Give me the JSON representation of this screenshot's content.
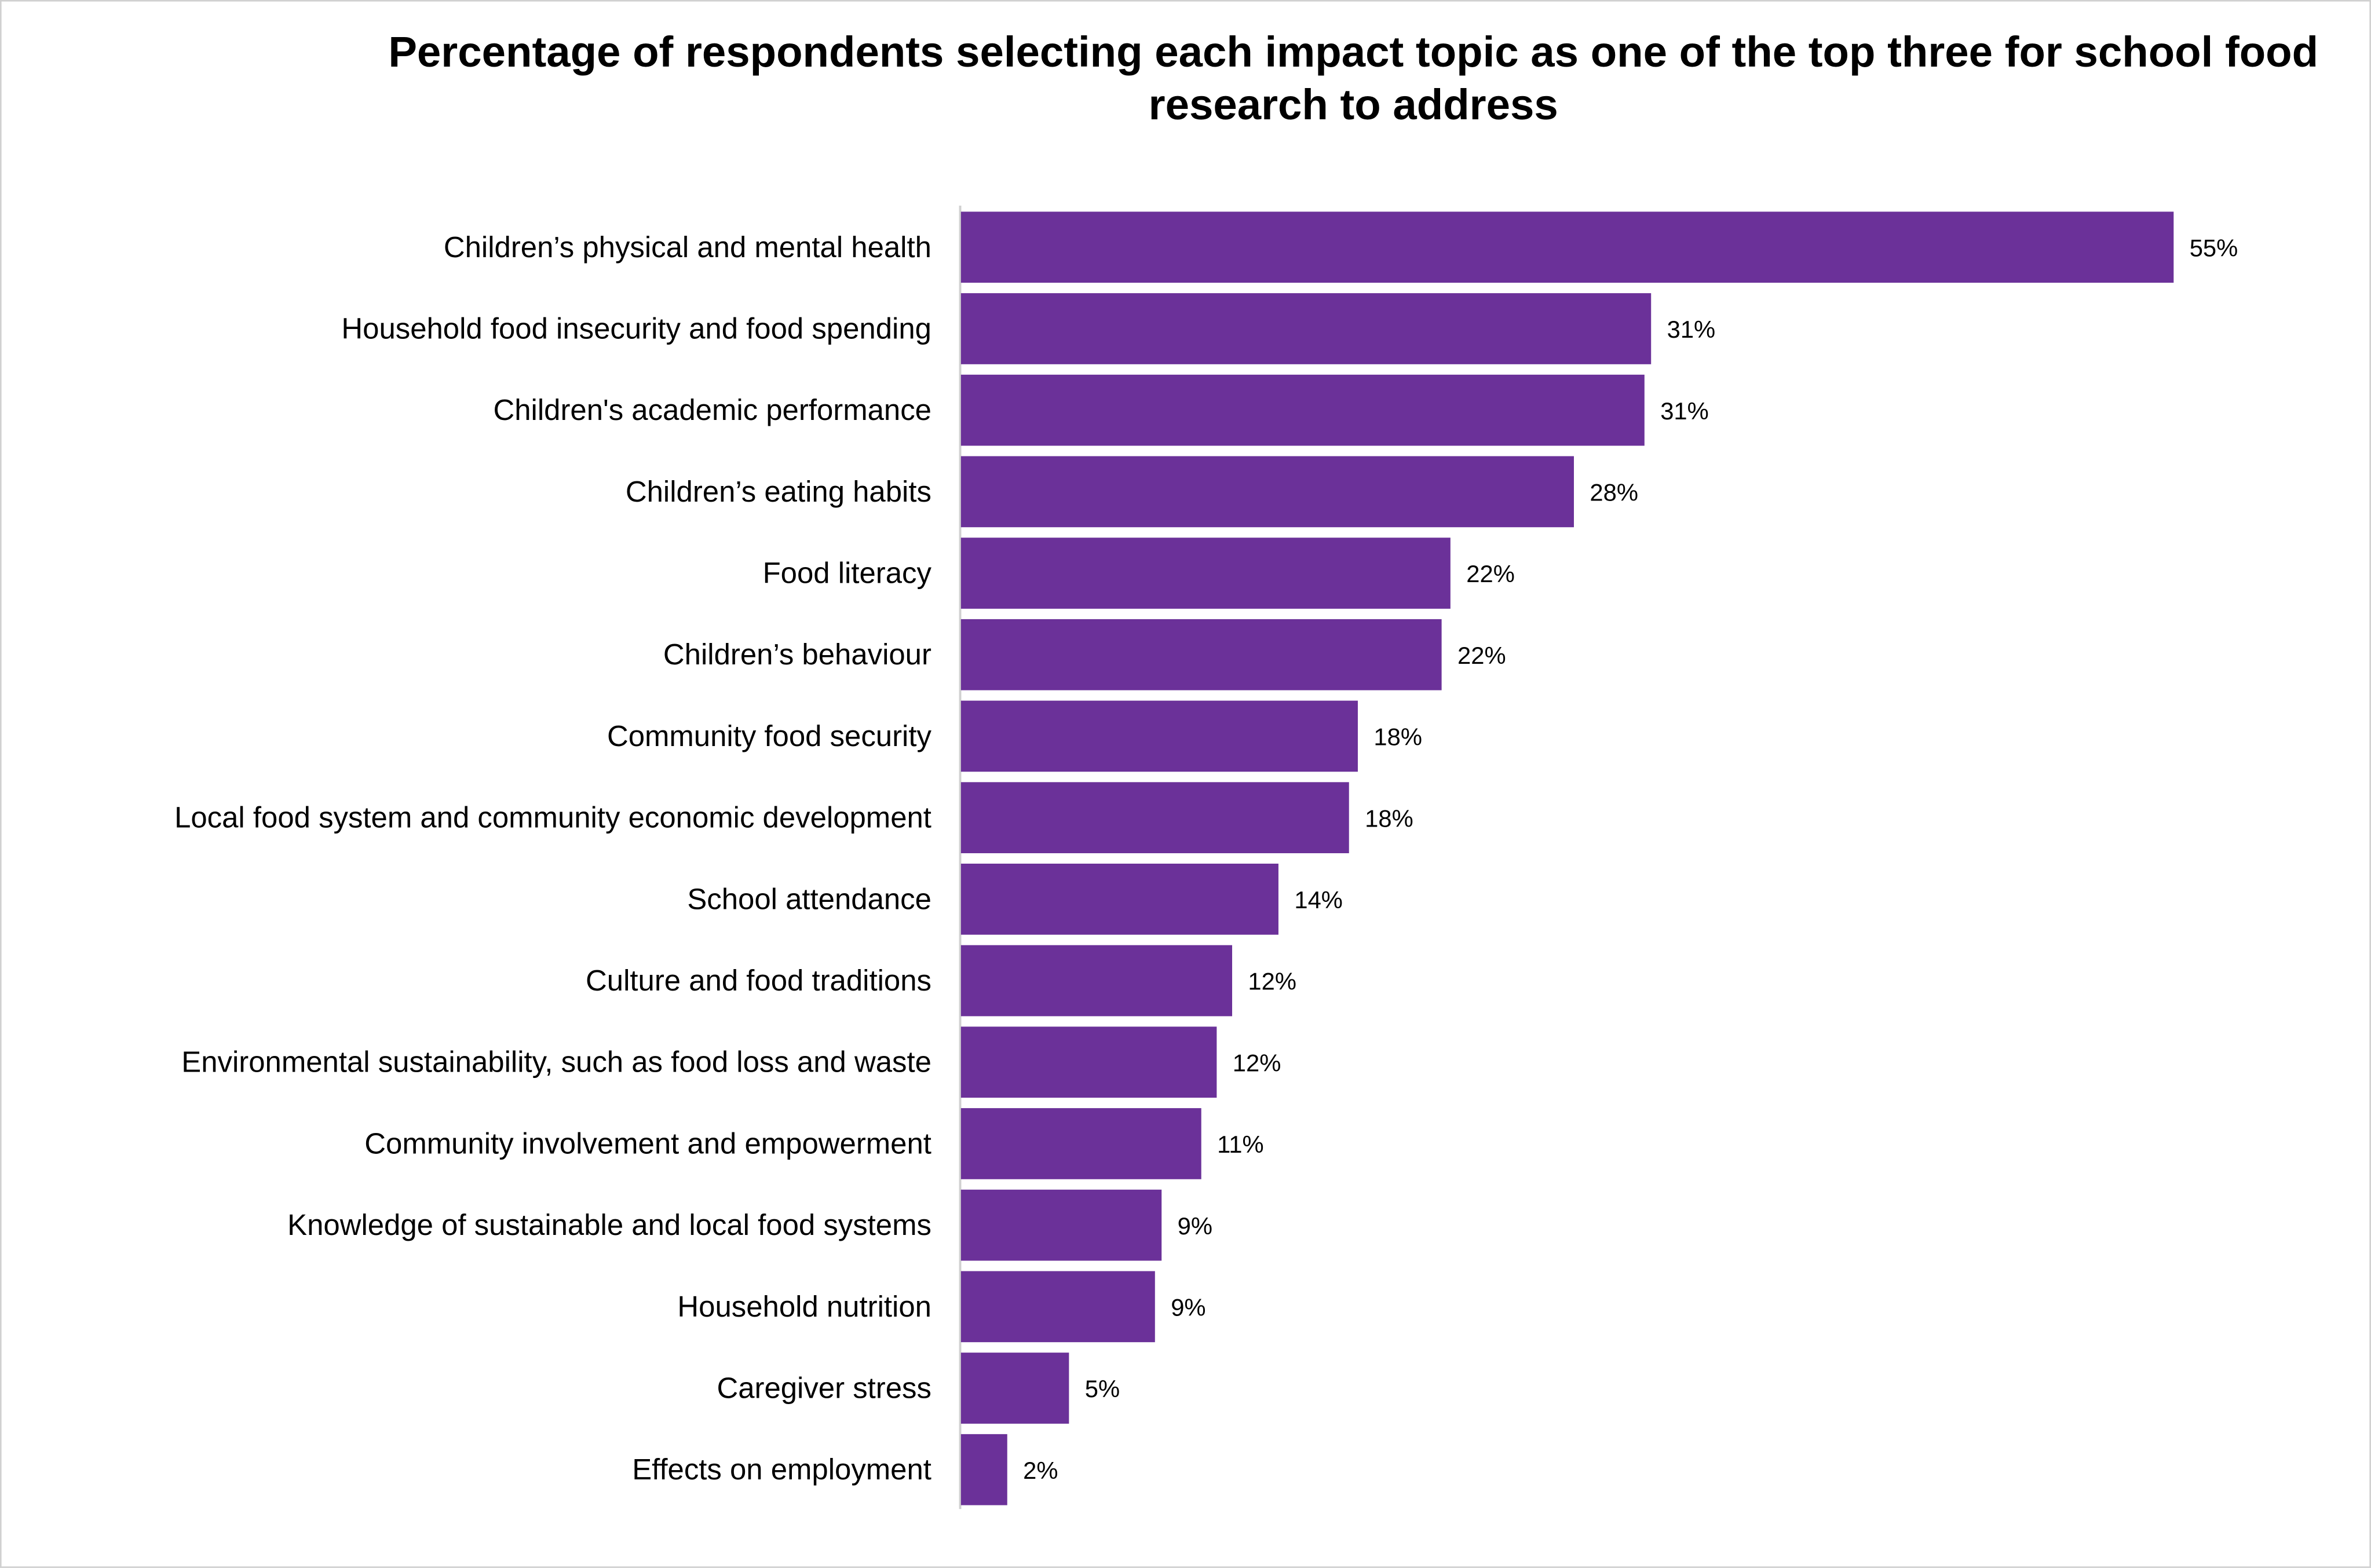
{
  "chart_data": {
    "type": "bar",
    "orientation": "horizontal",
    "title": "Percentage of respondents selecting each impact topic as one of the top three for school food research to address",
    "categories": [
      "Children’s physical and mental health",
      "Household food insecurity and food spending",
      "Children's academic performance",
      "Children’s eating habits",
      "Food literacy",
      "Children’s behaviour",
      "Community food security",
      "Local food system and community economic development",
      "School attendance",
      "Culture and food traditions",
      "Environmental sustainability, such as food loss and waste",
      "Community involvement and empowerment",
      "Knowledge of sustainable and local food systems",
      "Household nutrition",
      "Caregiver stress",
      "Effects on employment"
    ],
    "values": [
      55,
      31.3,
      31.0,
      27.8,
      22.2,
      21.8,
      18.0,
      17.6,
      14.4,
      12.3,
      11.6,
      10.9,
      9.1,
      8.8,
      4.9,
      2.1
    ],
    "data_labels": [
      "55%",
      "31%",
      "31%",
      "28%",
      "22%",
      "22%",
      "18%",
      "18%",
      "14%",
      "12%",
      "12%",
      "11%",
      "9%",
      "9%",
      "5%",
      "2%"
    ],
    "xlim": [
      0,
      55
    ],
    "grid": false,
    "legend": "none",
    "bar_color": "#6b3199",
    "axis_color": "#d0d0d0"
  }
}
